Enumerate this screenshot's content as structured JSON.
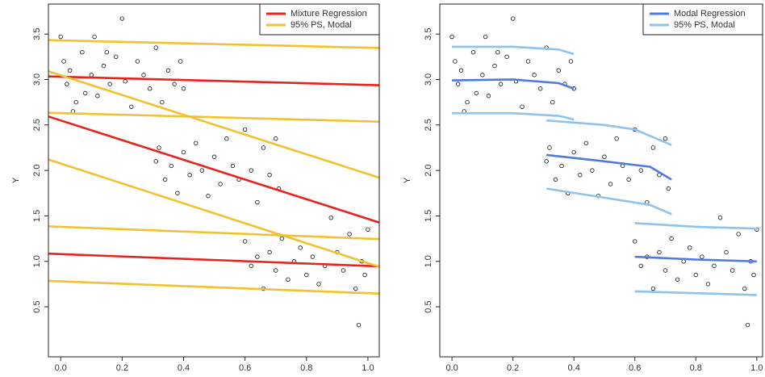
{
  "chart_data": [
    {
      "type": "line",
      "xlabel": "X",
      "ylabel": "Y",
      "xlim": [
        -0.04,
        1.037
      ],
      "ylim": [
        -0.05,
        3.83
      ],
      "xticks": [
        {
          "value": 0,
          "label": "0.0"
        },
        0.2,
        0.4,
        0.6,
        0.8,
        {
          "value": 1,
          "label": "1.0"
        }
      ],
      "yticks": [
        0.5,
        {
          "value": 1,
          "label": "1.0"
        },
        1.5,
        {
          "value": 2,
          "label": "2.0"
        },
        2.5,
        {
          "value": 3,
          "label": "3.0"
        },
        3.5
      ],
      "legend": "top-right",
      "points": {
        "x": [
          0.0,
          0.01,
          0.02,
          0.03,
          0.05,
          0.07,
          0.08,
          0.1,
          0.11,
          0.12,
          0.14,
          0.16,
          0.18,
          0.2,
          0.21,
          0.23,
          0.25,
          0.27,
          0.29,
          0.31,
          0.33,
          0.35,
          0.37,
          0.39,
          0.4,
          0.04,
          0.15,
          0.31,
          0.32,
          0.34,
          0.36,
          0.38,
          0.4,
          0.42,
          0.44,
          0.46,
          0.48,
          0.5,
          0.52,
          0.54,
          0.56,
          0.58,
          0.6,
          0.62,
          0.64,
          0.66,
          0.68,
          0.7,
          0.71,
          0.6,
          0.62,
          0.64,
          0.66,
          0.68,
          0.7,
          0.72,
          0.74,
          0.76,
          0.78,
          0.8,
          0.82,
          0.84,
          0.86,
          0.88,
          0.9,
          0.92,
          0.94,
          0.96,
          0.98,
          1.0,
          0.97,
          0.99
        ],
        "values": [
          3.47,
          3.2,
          2.95,
          3.1,
          2.75,
          3.3,
          2.85,
          3.05,
          3.47,
          2.82,
          3.15,
          2.95,
          3.25,
          3.67,
          2.98,
          2.7,
          3.2,
          3.05,
          2.9,
          3.35,
          2.75,
          3.1,
          2.95,
          3.2,
          2.9,
          2.65,
          3.3,
          2.1,
          2.25,
          1.9,
          2.05,
          1.75,
          2.2,
          1.95,
          2.3,
          2.0,
          1.72,
          2.15,
          1.85,
          2.35,
          2.05,
          1.9,
          2.45,
          2.0,
          1.65,
          2.25,
          1.95,
          2.35,
          1.8,
          1.22,
          0.95,
          1.05,
          0.7,
          1.1,
          0.9,
          1.25,
          0.8,
          1.0,
          1.15,
          0.85,
          1.05,
          0.75,
          0.95,
          1.48,
          1.1,
          0.9,
          1.3,
          0.7,
          1.0,
          1.35,
          0.3,
          0.85
        ]
      },
      "series": [
        {
          "name": "Mixture Regression",
          "color": "#e8231f",
          "lines": [
            {
              "x": [
                -0.04,
                1.037
              ],
              "values": [
                3.034,
                2.937
              ]
            },
            {
              "x": [
                -0.04,
                1.037
              ],
              "values": [
                2.593,
                1.427
              ]
            },
            {
              "x": [
                -0.04,
                1.037
              ],
              "values": [
                1.085,
                0.945
              ]
            }
          ]
        },
        {
          "name": "95% PS, Modal",
          "color": "#f2c12e",
          "lines": [
            {
              "x": [
                -0.04,
                1.037
              ],
              "values": [
                3.433,
                3.347
              ]
            },
            {
              "x": [
                -0.04,
                1.037
              ],
              "values": [
                2.634,
                2.536
              ]
            },
            {
              "x": [
                -0.04,
                1.037
              ],
              "values": [
                3.09,
                1.92
              ]
            },
            {
              "x": [
                -0.04,
                1.037
              ],
              "values": [
                2.12,
                0.94
              ]
            },
            {
              "x": [
                -0.04,
                1.037
              ],
              "values": [
                1.385,
                1.245
              ]
            },
            {
              "x": [
                -0.04,
                1.037
              ],
              "values": [
                0.785,
                0.645
              ]
            }
          ]
        }
      ]
    },
    {
      "type": "line",
      "xlabel": "X",
      "ylabel": "Y",
      "xlim": [
        -0.04,
        1.019
      ],
      "ylim": [
        -0.05,
        3.83
      ],
      "xticks": [
        {
          "value": 0,
          "label": "0.0"
        },
        0.2,
        0.4,
        0.6,
        0.8,
        {
          "value": 1,
          "label": "1.0"
        }
      ],
      "yticks": [
        0.5,
        {
          "value": 1,
          "label": "1.0"
        },
        1.5,
        {
          "value": 2,
          "label": "2.0"
        },
        2.5,
        {
          "value": 3,
          "label": "3.0"
        },
        3.5
      ],
      "legend": "top-right",
      "points": {
        "x": [
          0.0,
          0.01,
          0.02,
          0.03,
          0.05,
          0.07,
          0.08,
          0.1,
          0.11,
          0.12,
          0.14,
          0.16,
          0.18,
          0.2,
          0.21,
          0.23,
          0.25,
          0.27,
          0.29,
          0.31,
          0.33,
          0.35,
          0.37,
          0.39,
          0.4,
          0.04,
          0.15,
          0.31,
          0.32,
          0.34,
          0.36,
          0.38,
          0.4,
          0.42,
          0.44,
          0.46,
          0.48,
          0.5,
          0.52,
          0.54,
          0.56,
          0.58,
          0.6,
          0.62,
          0.64,
          0.66,
          0.68,
          0.7,
          0.71,
          0.6,
          0.62,
          0.64,
          0.66,
          0.68,
          0.7,
          0.72,
          0.74,
          0.76,
          0.78,
          0.8,
          0.82,
          0.84,
          0.86,
          0.88,
          0.9,
          0.92,
          0.94,
          0.96,
          0.98,
          1.0,
          0.97,
          0.99
        ],
        "values": [
          3.47,
          3.2,
          2.95,
          3.1,
          2.75,
          3.3,
          2.85,
          3.05,
          3.47,
          2.82,
          3.15,
          2.95,
          3.25,
          3.67,
          2.98,
          2.7,
          3.2,
          3.05,
          2.9,
          3.35,
          2.75,
          3.1,
          2.95,
          3.2,
          2.9,
          2.65,
          3.3,
          2.1,
          2.25,
          1.9,
          2.05,
          1.75,
          2.2,
          1.95,
          2.3,
          2.0,
          1.72,
          2.15,
          1.85,
          2.35,
          2.05,
          1.9,
          2.45,
          2.0,
          1.65,
          2.25,
          1.95,
          2.35,
          1.8,
          1.22,
          0.95,
          1.05,
          0.7,
          1.1,
          0.9,
          1.25,
          0.8,
          1.0,
          1.15,
          0.85,
          1.05,
          0.75,
          0.95,
          1.48,
          1.1,
          0.9,
          1.3,
          0.7,
          1.0,
          1.35,
          0.3,
          0.85
        ]
      },
      "series": [
        {
          "name": "Modal Regression",
          "color": "#4f7be0",
          "lines": [
            {
              "x": [
                0,
                0.2,
                0.35,
                0.4
              ],
              "values": [
                2.99,
                3.0,
                2.96,
                2.9
              ]
            },
            {
              "x": [
                0.31,
                0.5,
                0.65,
                0.72
              ],
              "values": [
                2.17,
                2.1,
                2.04,
                1.9
              ]
            },
            {
              "x": [
                0.6,
                0.8,
                1.0
              ],
              "values": [
                1.05,
                1.02,
                1.0
              ]
            }
          ]
        },
        {
          "name": "95% PS, Modal",
          "color": "#8ec3ee",
          "lines": [
            {
              "x": [
                0,
                0.2,
                0.35,
                0.4
              ],
              "values": [
                3.36,
                3.36,
                3.33,
                3.28
              ]
            },
            {
              "x": [
                0,
                0.2,
                0.35,
                0.4
              ],
              "values": [
                2.63,
                2.63,
                2.6,
                2.56
              ]
            },
            {
              "x": [
                0.31,
                0.5,
                0.6,
                0.72
              ],
              "values": [
                2.55,
                2.5,
                2.45,
                2.28
              ]
            },
            {
              "x": [
                0.31,
                0.5,
                0.65,
                0.72
              ],
              "values": [
                1.8,
                1.7,
                1.62,
                1.52
              ]
            },
            {
              "x": [
                0.6,
                0.8,
                1.0
              ],
              "values": [
                1.42,
                1.38,
                1.36
              ]
            },
            {
              "x": [
                0.6,
                0.8,
                1.0
              ],
              "values": [
                0.67,
                0.65,
                0.63
              ]
            }
          ]
        }
      ]
    }
  ]
}
